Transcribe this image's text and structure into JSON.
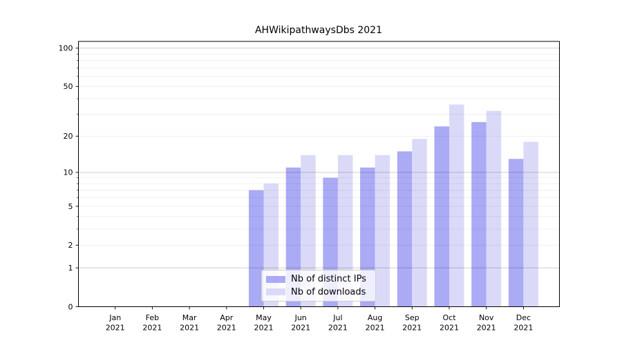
{
  "chart_data": {
    "type": "bar",
    "title": "AHWikipathwaysDbs 2021",
    "categories": [
      "Jan",
      "Feb",
      "Mar",
      "Apr",
      "May",
      "Jun",
      "Jul",
      "Aug",
      "Sep",
      "Oct",
      "Nov",
      "Dec"
    ],
    "category_year": "2021",
    "series": [
      {
        "name": "Nb of distinct IPs",
        "color": "#aaaaf5",
        "values": [
          0,
          0,
          0,
          0,
          7,
          11,
          9,
          11,
          15,
          24,
          26,
          13
        ]
      },
      {
        "name": "Nb of downloads",
        "color": "#dadaf8",
        "values": [
          0,
          0,
          0,
          0,
          8,
          14,
          14,
          14,
          19,
          36,
          32,
          18
        ]
      }
    ],
    "yscale": "log1p",
    "ylim": [
      0,
      113
    ],
    "y_ticks": [
      0,
      1,
      2,
      5,
      10,
      20,
      50,
      100
    ],
    "grid": "horizontal",
    "legend_position": "lower center"
  },
  "colors": {
    "bar_distinct_ips": "#aaaaf5",
    "bar_downloads": "#dadaf8",
    "grid_minor": "rgba(0,0,0,0.075)",
    "grid_major": "rgba(0,0,0,0.22)",
    "spine": "#000000",
    "text": "#000000"
  }
}
